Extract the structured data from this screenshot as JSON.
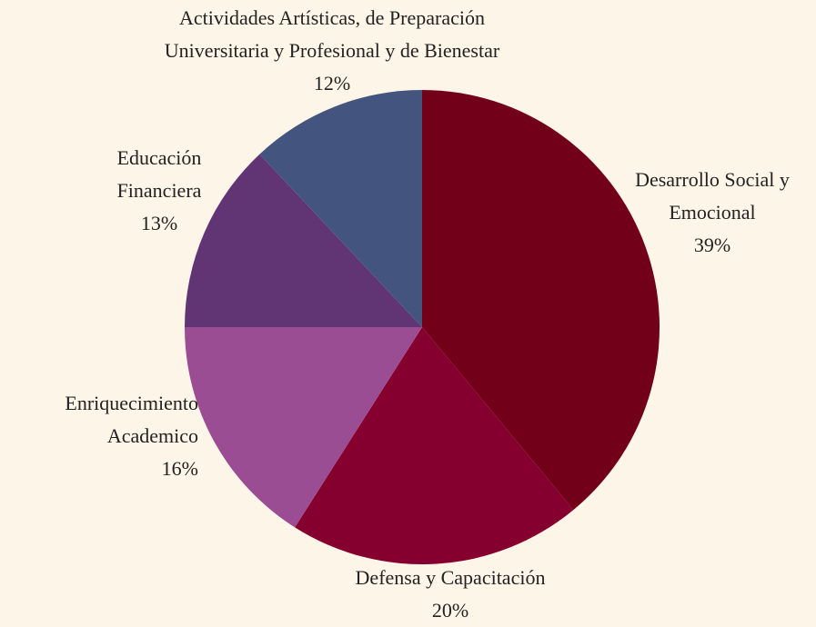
{
  "chart_data": {
    "type": "pie",
    "categories": [
      "Desarrollo Social y Emocional",
      "Defensa y Capacitación",
      "Enriquecimiento Academico",
      "Educación Financiera",
      "Actividades Artísticas, de Preparación Universitaria y Profesional y de Bienestar"
    ],
    "values": [
      39,
      20,
      16,
      13,
      12
    ],
    "value_labels": [
      "39%",
      "20%",
      "16%",
      "13%",
      "12%"
    ],
    "colors": [
      "#730019",
      "#85002e",
      "#9b4d94",
      "#613574",
      "#43557f"
    ]
  }
}
